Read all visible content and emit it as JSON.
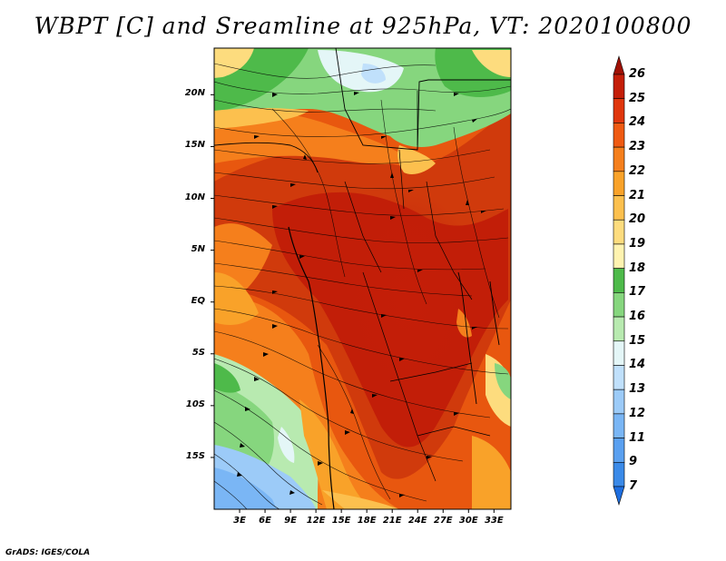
{
  "title": "WBPT [C] and Sreamline at 925hPa, VT: 2020100800",
  "credit": "GrADS: IGES/COLA",
  "map": {
    "variable": "Wet-bulb potential temperature",
    "level": "925hPa",
    "lat_labels": [
      "20N",
      "15N",
      "10N",
      "5N",
      "EQ",
      "5S",
      "10S",
      "15S"
    ],
    "lat_values": [
      20,
      15,
      10,
      5,
      0,
      -5,
      -10,
      -15
    ],
    "lon_labels": [
      "3E",
      "6E",
      "9E",
      "12E",
      "15E",
      "18E",
      "21E",
      "24E",
      "27E",
      "30E",
      "33E"
    ],
    "lon_values": [
      3,
      6,
      9,
      12,
      15,
      18,
      21,
      24,
      27,
      30,
      33
    ],
    "lat_range": [
      -20,
      24.5
    ],
    "lon_range": [
      0,
      35
    ]
  },
  "colorbar": {
    "labels": [
      "7",
      "9",
      "11",
      "12",
      "13",
      "14",
      "15",
      "16",
      "17",
      "18",
      "19",
      "20",
      "21",
      "22",
      "23",
      "24",
      "25",
      "26"
    ],
    "colors": [
      "#1e6ee0",
      "#3a8ae8",
      "#5aa0f0",
      "#7ab6f5",
      "#9ccbf8",
      "#c0e0fb",
      "#e4f6f7",
      "#b8eab0",
      "#86d67e",
      "#4eba4a",
      "#fff3b0",
      "#fddc7e",
      "#fcc04e",
      "#f9a229",
      "#f57f1c",
      "#ef5a12",
      "#e0360c",
      "#c41e08",
      "#a01004"
    ]
  }
}
